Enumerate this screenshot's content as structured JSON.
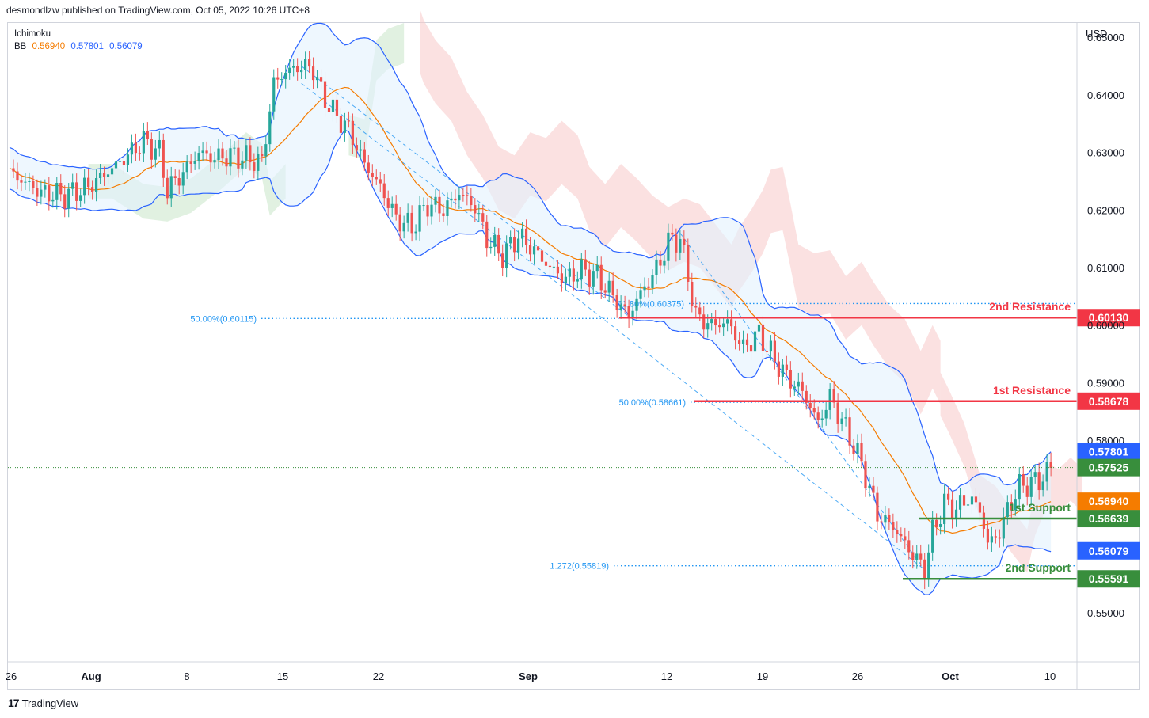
{
  "header": {
    "publisher": "desmondlzw published on TradingView.com, Oct 05, 2022 10:26 UTC+8"
  },
  "legend": {
    "ichimoku": "Ichimoku",
    "bb_label": "BB",
    "bb_values": [
      "0.56940",
      "0.57801",
      "0.56079"
    ]
  },
  "footer": {
    "brand": "TradingView"
  },
  "colors": {
    "up": "#26a69a",
    "down": "#ef5350",
    "bb_band": "#2962ff",
    "bb_basis": "#f57c00",
    "resistance": "#f23645",
    "support": "#388e3c",
    "fib": "#2196f3",
    "cloud_bear": "#f8c8c8",
    "cloud_bull": "#c8e6c9"
  },
  "chart_data": {
    "type": "candlestick",
    "currency": "USD",
    "y_range": [
      0.5415,
      0.6525
    ],
    "y_ticks": [
      "0.65000",
      "0.64000",
      "0.63000",
      "0.62000",
      "0.61000",
      "0.60000",
      "0.59000",
      "0.58000",
      "0.55000"
    ],
    "x_ticks": [
      "26",
      "Aug",
      "8",
      "15",
      "22",
      "Sep",
      "12",
      "19",
      "26",
      "Oct",
      "10"
    ],
    "levels": [
      {
        "name": "2nd Resistance",
        "value": "0.60130",
        "kind": "resistance"
      },
      {
        "name": "1st Resistance",
        "value": "0.58678",
        "kind": "resistance"
      },
      {
        "name": "1st Support",
        "value": "0.56639",
        "kind": "support"
      },
      {
        "name": "2nd Support",
        "value": "0.55591",
        "kind": "support"
      }
    ],
    "price_labels": [
      {
        "value": "0.57801",
        "kind": "bb_upper"
      },
      {
        "value": "0.57525",
        "kind": "last"
      },
      {
        "value": "0.56940",
        "kind": "bb_basis"
      },
      {
        "value": "0.56079",
        "kind": "bb_lower"
      }
    ],
    "fib_labels": [
      {
        "text": "50.00%(0.60115)",
        "value": 0.60115
      },
      {
        "text": "61.80%(0.60375)",
        "value": 0.60375
      },
      {
        "text": "50.00%(0.58661)",
        "value": 0.58661
      },
      {
        "text": "1.272(0.55819)",
        "value": 0.55819
      }
    ],
    "price_path": [
      [
        0,
        0.6265
      ],
      [
        8,
        0.623
      ],
      [
        14,
        0.6225
      ],
      [
        20,
        0.624
      ],
      [
        28,
        0.6283
      ],
      [
        34,
        0.632
      ],
      [
        38,
        0.63
      ],
      [
        40,
        0.6235
      ],
      [
        44,
        0.6265
      ],
      [
        48,
        0.63
      ],
      [
        52,
        0.629
      ],
      [
        56,
        0.6295
      ],
      [
        60,
        0.629
      ],
      [
        64,
        0.6283
      ],
      [
        67,
        0.642
      ],
      [
        70,
        0.644
      ],
      [
        74,
        0.645
      ],
      [
        77,
        0.6445
      ],
      [
        79,
        0.6405
      ],
      [
        82,
        0.637
      ],
      [
        86,
        0.634
      ],
      [
        90,
        0.628
      ],
      [
        94,
        0.624
      ],
      [
        98,
        0.6185
      ],
      [
        102,
        0.617
      ],
      [
        106,
        0.621
      ],
      [
        110,
        0.62
      ],
      [
        114,
        0.623
      ],
      [
        118,
        0.6205
      ],
      [
        121,
        0.615
      ],
      [
        125,
        0.612
      ],
      [
        129,
        0.6155
      ],
      [
        133,
        0.613
      ],
      [
        137,
        0.61
      ],
      [
        141,
        0.608
      ],
      [
        145,
        0.6095
      ],
      [
        149,
        0.6085
      ],
      [
        153,
        0.605
      ],
      [
        157,
        0.6015
      ],
      [
        159,
        0.6045
      ],
      [
        162,
        0.6075
      ],
      [
        165,
        0.611
      ],
      [
        167,
        0.6145
      ],
      [
        170,
        0.615
      ],
      [
        172,
        0.6085
      ],
      [
        174,
        0.6015
      ],
      [
        178,
        0.6
      ],
      [
        182,
        0.6005
      ],
      [
        186,
        0.596
      ],
      [
        190,
        0.5985
      ],
      [
        193,
        0.595
      ],
      [
        197,
        0.591
      ],
      [
        201,
        0.5885
      ],
      [
        205,
        0.583
      ],
      [
        208,
        0.5875
      ],
      [
        212,
        0.582
      ],
      [
        216,
        0.576
      ],
      [
        220,
        0.567
      ],
      [
        224,
        0.565
      ],
      [
        228,
        0.561
      ],
      [
        232,
        0.5575
      ],
      [
        234,
        0.564
      ],
      [
        237,
        0.569
      ],
      [
        240,
        0.568
      ],
      [
        243,
        0.57
      ],
      [
        246,
        0.568
      ],
      [
        248,
        0.562
      ],
      [
        251,
        0.564
      ],
      [
        253,
        0.568
      ],
      [
        256,
        0.572
      ],
      [
        259,
        0.5725
      ],
      [
        262,
        0.5735
      ],
      [
        264,
        0.5752
      ]
    ]
  }
}
